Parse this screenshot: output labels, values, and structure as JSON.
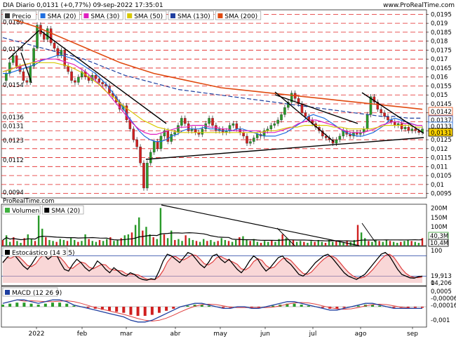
{
  "header": {
    "title": "DIA Diario 0,0131 (+0,77%) 09-sep-2022 17:35:01",
    "watermark_top": "www.ProRealTime.com",
    "watermark_bottom": "ProRealTime.com"
  },
  "price_panel": {
    "legend": [
      {
        "label": "Precio",
        "color": "#333333"
      },
      {
        "label": "SMA (20)",
        "color": "#1f6fe0"
      },
      {
        "label": "SMA (30)",
        "color": "#e020c0"
      },
      {
        "label": "SMA (50)",
        "color": "#d8c800"
      },
      {
        "label": "SMA (130)",
        "color": "#1f3fa0"
      },
      {
        "label": "SMA (200)",
        "color": "#e04a10"
      }
    ],
    "y_ticks": [
      "0,0195",
      "0,019",
      "0,0185",
      "0,018",
      "0,0175",
      "0,017",
      "0,0165",
      "0,016",
      "0,0155",
      "0,015",
      "0,0145",
      "0,014",
      "0,0135",
      "0,013",
      "0,0125",
      "0,012",
      "0,0115",
      "0,011",
      "0,0105",
      "0,01",
      "0,0095"
    ],
    "left_labels": [
      "0,0189",
      "0,0174",
      "0,0154",
      "0,0136",
      "0,0131",
      "0,0123",
      "0,0112",
      "0,0094"
    ],
    "value_tags": [
      {
        "text": "0,0142",
        "color": "#e04a10",
        "bg": "#ffffff"
      },
      {
        "text": "0,0137",
        "color": "#1f3fa0",
        "bg": "#ffffff"
      },
      {
        "text": "0,0133",
        "color": "#1f6fe0",
        "bg": "#ffffff"
      },
      {
        "text": "0,0131",
        "color": "#000000",
        "bg": "#ffd400"
      }
    ]
  },
  "volume_panel": {
    "legend": [
      {
        "label": "Volumen",
        "color": "#40b040"
      },
      {
        "label": "SMA (20)",
        "color": "#000000"
      }
    ],
    "y_ticks": [
      "200M",
      "150M",
      "100M",
      "50M"
    ],
    "value_tags": [
      "40,3M",
      "10,4M"
    ]
  },
  "stoch_panel": {
    "legend": [
      {
        "label": "Estocástico (14 3 5)",
        "color": "#000000"
      }
    ],
    "y_ticks": [
      "100",
      "0"
    ],
    "value_tags": [
      "19,913",
      "14,206"
    ]
  },
  "macd_panel": {
    "legend": [
      {
        "label": "MACD (12 26 9)",
        "color": "#1f3fa0"
      }
    ],
    "y_ticks": [
      "0,0005",
      "-0,001"
    ],
    "value_tags": [
      "-0,00006",
      "-0,00016"
    ]
  },
  "x_axis": {
    "months": [
      "2022",
      "feb",
      "mar",
      "abr",
      "may",
      "jun",
      "jul",
      "ago",
      "sep"
    ]
  },
  "chart_data": {
    "type": "line",
    "title": "DIA Diario",
    "ylim": [
      0.00925,
      0.01975
    ],
    "months": [
      "2022",
      "feb",
      "mar",
      "abr",
      "may",
      "jun",
      "jul",
      "ago",
      "sep"
    ],
    "price_close": [
      0.0158,
      0.0162,
      0.0168,
      0.0172,
      0.0166,
      0.0163,
      0.0158,
      0.0157,
      0.0166,
      0.0176,
      0.0189,
      0.0184,
      0.0181,
      0.0187,
      0.0179,
      0.0176,
      0.0172,
      0.0175,
      0.0166,
      0.0163,
      0.0158,
      0.0157,
      0.016,
      0.0163,
      0.016,
      0.0158,
      0.0161,
      0.0159,
      0.0157,
      0.0156,
      0.0155,
      0.0151,
      0.0149,
      0.0146,
      0.0142,
      0.0144,
      0.0136,
      0.0131,
      0.0125,
      0.0121,
      0.0112,
      0.0098,
      0.0112,
      0.0118,
      0.0124,
      0.012,
      0.0127,
      0.013,
      0.0124,
      0.0128,
      0.0129,
      0.0133,
      0.0137,
      0.0134,
      0.013,
      0.0131,
      0.0129,
      0.0128,
      0.0131,
      0.0134,
      0.0137,
      0.0133,
      0.013,
      0.0131,
      0.0129,
      0.013,
      0.0133,
      0.0134,
      0.0131,
      0.0129,
      0.0127,
      0.0123,
      0.0124,
      0.0126,
      0.0128,
      0.0127,
      0.013,
      0.0131,
      0.0133,
      0.0134,
      0.0136,
      0.0139,
      0.0143,
      0.0146,
      0.0151,
      0.0148,
      0.0145,
      0.014,
      0.0138,
      0.0136,
      0.0134,
      0.0132,
      0.013,
      0.0127,
      0.0126,
      0.0125,
      0.0123,
      0.0125,
      0.0127,
      0.013,
      0.0128,
      0.0127,
      0.0129,
      0.0128,
      0.0129,
      0.0131,
      0.0139,
      0.0149,
      0.0146,
      0.0142,
      0.014,
      0.0138,
      0.0136,
      0.0135,
      0.0133,
      0.0134,
      0.0131,
      0.0132,
      0.013,
      0.0131,
      0.013,
      0.0129,
      0.0131
    ],
    "series": [
      {
        "name": "SMA (20)",
        "color": "#1f6fe0",
        "values": [
          0.0162,
          0.0162,
          0.0163,
          0.0164,
          0.0165,
          0.0166,
          0.0167,
          0.0169,
          0.017,
          0.0171,
          0.0172,
          0.0172,
          0.0171,
          0.017,
          0.0168,
          0.0166,
          0.0164,
          0.0162,
          0.0159,
          0.0156,
          0.0152,
          0.0148,
          0.0143,
          0.0138,
          0.0134,
          0.013,
          0.0127,
          0.0125,
          0.0124,
          0.0124,
          0.0125,
          0.0127,
          0.0128,
          0.013,
          0.0131,
          0.0131,
          0.0131,
          0.0132,
          0.0131,
          0.0131,
          0.013,
          0.013,
          0.013,
          0.0131,
          0.0131,
          0.013,
          0.0129,
          0.0128,
          0.0127,
          0.0127,
          0.0127,
          0.0128,
          0.0129,
          0.0131,
          0.0133,
          0.0135,
          0.0138,
          0.0139,
          0.0138,
          0.0137,
          0.0135,
          0.0133,
          0.0131,
          0.0129,
          0.0128,
          0.0127,
          0.0127,
          0.0128,
          0.0129,
          0.0131,
          0.0133,
          0.0136,
          0.0137,
          0.0136,
          0.0135,
          0.0134,
          0.0133,
          0.0133
        ]
      },
      {
        "name": "SMA (30)",
        "color": "#e020c0",
        "values": [
          0.0163,
          0.0164,
          0.0165,
          0.0166,
          0.0167,
          0.0168,
          0.0169,
          0.017,
          0.017,
          0.017,
          0.0169,
          0.0168,
          0.0167,
          0.0165,
          0.0163,
          0.016,
          0.0157,
          0.0154,
          0.015,
          0.0146,
          0.0142,
          0.0138,
          0.0134,
          0.0131,
          0.0129,
          0.0128,
          0.0128,
          0.0129,
          0.013,
          0.0131,
          0.0132,
          0.0132,
          0.0133,
          0.0133,
          0.0133,
          0.0132,
          0.0132,
          0.0131,
          0.0131,
          0.013,
          0.013,
          0.013,
          0.013,
          0.013,
          0.0129,
          0.0129,
          0.0129,
          0.013,
          0.0131,
          0.0132,
          0.0134,
          0.0135,
          0.0136,
          0.0136,
          0.0135,
          0.0134,
          0.0133,
          0.0131,
          0.013,
          0.0129,
          0.0129,
          0.0129,
          0.013,
          0.0131,
          0.0133,
          0.0134,
          0.0135,
          0.0135,
          0.0134,
          0.0134,
          0.0133,
          0.0133
        ]
      },
      {
        "name": "SMA (50)",
        "color": "#d8c800",
        "values": [
          0.0163,
          0.0164,
          0.0166,
          0.0167,
          0.0168,
          0.0168,
          0.0168,
          0.0168,
          0.0167,
          0.0166,
          0.0164,
          0.0162,
          0.0159,
          0.0156,
          0.0152,
          0.0149,
          0.0145,
          0.0142,
          0.0139,
          0.0136,
          0.0134,
          0.0132,
          0.0131,
          0.013,
          0.0129,
          0.0129,
          0.0129,
          0.0129,
          0.0129,
          0.0129,
          0.0129,
          0.0129,
          0.0129,
          0.0129,
          0.0129,
          0.0129,
          0.013,
          0.013,
          0.0131,
          0.0132,
          0.0132,
          0.0133,
          0.0133,
          0.0133,
          0.0133,
          0.0132,
          0.0132,
          0.0131,
          0.0131,
          0.0131,
          0.0131,
          0.0132,
          0.0133,
          0.0133,
          0.0133,
          0.0133,
          0.0132,
          0.0132
        ]
      },
      {
        "name": "SMA (130)",
        "color": "#1f3fa0",
        "values": [
          0.0182,
          0.018,
          0.0178,
          0.0176,
          0.0174,
          0.0172,
          0.017,
          0.0167,
          0.0164,
          0.0161,
          0.0159,
          0.0157,
          0.0155,
          0.0153,
          0.0152,
          0.0151,
          0.015,
          0.0149,
          0.0148,
          0.0147,
          0.0146,
          0.0145,
          0.0144,
          0.0143,
          0.0142,
          0.0141,
          0.014,
          0.0139,
          0.0138,
          0.0138,
          0.0137,
          0.0137
        ]
      },
      {
        "name": "SMA (200)",
        "color": "#e04a10",
        "values": [
          0.0194,
          0.0191,
          0.0188,
          0.0184,
          0.018,
          0.0176,
          0.0172,
          0.0168,
          0.0165,
          0.0162,
          0.016,
          0.0158,
          0.0156,
          0.0154,
          0.0153,
          0.0152,
          0.0151,
          0.015,
          0.0149,
          0.0148,
          0.0147,
          0.0146,
          0.0145,
          0.0144,
          0.0143,
          0.0142
        ]
      }
    ],
    "volume": [
      30,
      55,
      20,
      45,
      25,
      15,
      40,
      60,
      35,
      25,
      160,
      90,
      45,
      30,
      25,
      20,
      35,
      30,
      25,
      40,
      30,
      20,
      25,
      60,
      35,
      25,
      20,
      30,
      25,
      35,
      45,
      25,
      30,
      40,
      55,
      60,
      70,
      110,
      150,
      80,
      100,
      60,
      45,
      35,
      200,
      60,
      40,
      80,
      30,
      35,
      25,
      55,
      40,
      30,
      25,
      20,
      35,
      25,
      30,
      20,
      25,
      40,
      30,
      25,
      20,
      30,
      45,
      50,
      30,
      25,
      35,
      20,
      15,
      25,
      20,
      30,
      20,
      35,
      60,
      40,
      25,
      30,
      20,
      25,
      20,
      15,
      25,
      20,
      30,
      20,
      15,
      30,
      20,
      25,
      20,
      15,
      25,
      20,
      30,
      110,
      70,
      40,
      25,
      20,
      30,
      25,
      20,
      30,
      25,
      20,
      15,
      20,
      25,
      30,
      25,
      20,
      15,
      40
    ],
    "stochastic": [
      60,
      75,
      85,
      80,
      65,
      50,
      40,
      55,
      75,
      90,
      85,
      70,
      80,
      85,
      60,
      40,
      35,
      55,
      70,
      60,
      45,
      35,
      45,
      65,
      55,
      40,
      30,
      45,
      35,
      25,
      20,
      30,
      25,
      15,
      10,
      8,
      12,
      10,
      35,
      65,
      85,
      80,
      70,
      60,
      75,
      90,
      85,
      70,
      55,
      45,
      60,
      80,
      85,
      70,
      60,
      70,
      55,
      40,
      30,
      45,
      65,
      80,
      70,
      50,
      35,
      45,
      60,
      75,
      80,
      65,
      55,
      40,
      25,
      20,
      30,
      45,
      60,
      70,
      80,
      85,
      75,
      60,
      45,
      30,
      20,
      15,
      10,
      18,
      25,
      40,
      55,
      70,
      85,
      90,
      80,
      60,
      40,
      25,
      20,
      15,
      14,
      18,
      20
    ],
    "macd": [
      0.0002,
      0.0003,
      0.0004,
      0.0004,
      0.0003,
      0.0002,
      0.0003,
      0.0004,
      0.0004,
      0.0003,
      0.0001,
      0.0,
      -0.0001,
      -0.0002,
      -0.0003,
      -0.0004,
      -0.0005,
      -0.0006,
      -0.0008,
      -0.0009,
      -0.0009,
      -0.0008,
      -0.0006,
      -0.0004,
      -0.0002,
      0.0,
      0.0001,
      0.0002,
      0.0002,
      0.0001,
      0.0,
      -0.0001,
      -0.0001,
      0.0,
      0.0,
      -0.0001,
      -0.0001,
      0.0,
      0.0001,
      0.0002,
      0.0003,
      0.0003,
      0.0002,
      0.0001,
      0.0,
      -0.0001,
      -0.0002,
      -0.0002,
      -0.0001,
      0.0,
      0.0001,
      0.0002,
      0.0002,
      0.0001,
      0.0,
      -0.0001,
      -0.0001,
      -0.0001,
      -0.0001,
      -0.0001
    ]
  }
}
